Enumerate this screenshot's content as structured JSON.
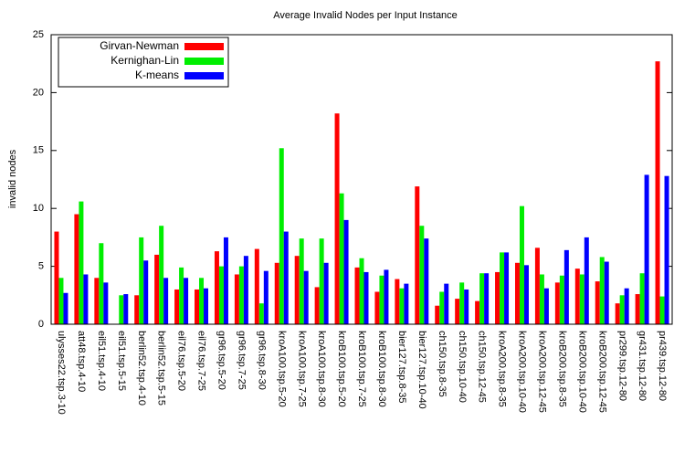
{
  "chart_data": {
    "type": "bar",
    "title": "Average Invalid Nodes per Input Instance",
    "ylabel": "invalid nodes",
    "categories": [
      "ulysses22.tsp.3-10",
      "att48.tsp.4-10",
      "eil51.tsp.4-10",
      "eil51.tsp.5-15",
      "berlin52.tsp.4-10",
      "berlin52.tsp.5-15",
      "eil76.tsp.5-20",
      "eil76.tsp.7-25",
      "gr96.tsp.5-20",
      "gr96.tsp.7-25",
      "gr96.tsp.8-30",
      "kroA100.tsp.5-20",
      "kroA100.tsp.7-25",
      "kroA100.tsp.8-30",
      "kroB100.tsp.5-20",
      "kroB100.tsp.7-25",
      "kroB100.tsp.8-30",
      "bier127.tsp.8-35",
      "bier127.tsp.10-40",
      "ch150.tsp.8-35",
      "ch150.tsp.10-40",
      "ch150.tsp.12-45",
      "kroA200.tsp.8-35",
      "kroA200.tsp.10-40",
      "kroA200.tsp.12-45",
      "kroB200.tsp.8-35",
      "kroB200.tsp.10-40",
      "kroB200.tsp.12-45",
      "pr299.tsp.12-80",
      "gr431.tsp.12-80",
      "pr439.tsp.12-80"
    ],
    "series": [
      {
        "name": "Girvan-Newman",
        "color": "#ff0000",
        "values": [
          8.0,
          9.5,
          4.0,
          0,
          2.5,
          6.0,
          3.0,
          3.0,
          6.3,
          4.3,
          6.5,
          5.3,
          5.9,
          3.2,
          18.2,
          4.9,
          2.8,
          3.9,
          11.9,
          1.6,
          2.2,
          2.0,
          4.5,
          5.3,
          6.6,
          3.6,
          4.8,
          3.7,
          1.8,
          2.6,
          22.7
        ]
      },
      {
        "name": "Kernighan-Lin",
        "color": "#00ee00",
        "values": [
          4.0,
          10.6,
          7.0,
          2.5,
          7.5,
          8.5,
          4.9,
          4.0,
          5.0,
          5.0,
          1.8,
          15.2,
          7.4,
          7.4,
          11.3,
          5.7,
          4.2,
          3.1,
          8.5,
          2.8,
          3.6,
          4.4,
          6.2,
          10.2,
          4.3,
          4.2,
          4.3,
          5.8,
          2.5,
          4.4,
          2.4
        ]
      },
      {
        "name": "K-means",
        "color": "#0000ff",
        "values": [
          2.7,
          4.3,
          3.6,
          2.6,
          5.5,
          4.0,
          4.0,
          3.1,
          7.5,
          5.9,
          4.6,
          8.0,
          4.6,
          5.3,
          9.0,
          4.5,
          4.7,
          3.5,
          7.4,
          3.5,
          3.0,
          4.4,
          6.2,
          5.1,
          3.1,
          6.4,
          7.5,
          5.4,
          3.1,
          12.9,
          12.8
        ]
      }
    ],
    "ylim": [
      0,
      25
    ],
    "yticks": [
      0,
      5,
      10,
      15,
      20,
      25
    ],
    "legend": "upper left"
  }
}
